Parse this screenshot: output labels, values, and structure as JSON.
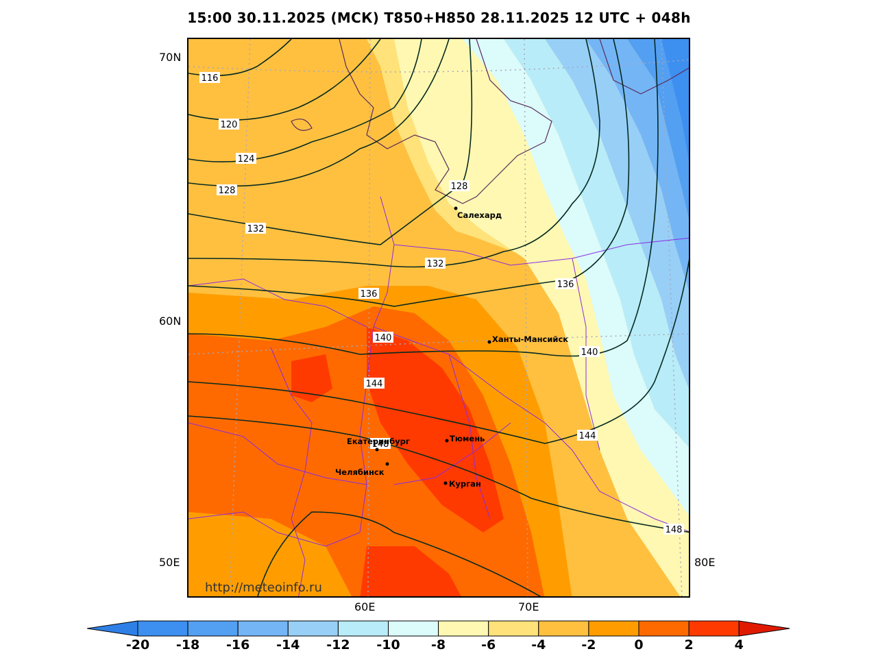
{
  "title": "15:00 30.11.2025 (МСК) T850+H850 28.11.2025 12 UTC + 048h",
  "watermark": "http://meteoinfo.ru",
  "axes": {
    "lat_labels": [
      "70N",
      "60N"
    ],
    "lon_labels_bottom": [
      "60E",
      "70E"
    ],
    "corner_labels": [
      "50E",
      "80E"
    ]
  },
  "contours": [
    {
      "value": "116"
    },
    {
      "value": "120"
    },
    {
      "value": "124"
    },
    {
      "value": "128"
    },
    {
      "value": "128"
    },
    {
      "value": "132"
    },
    {
      "value": "132"
    },
    {
      "value": "136"
    },
    {
      "value": "136"
    },
    {
      "value": "140"
    },
    {
      "value": "140"
    },
    {
      "value": "144"
    },
    {
      "value": "144"
    },
    {
      "value": "148"
    },
    {
      "value": "148"
    }
  ],
  "cities": [
    {
      "name": "Салехард"
    },
    {
      "name": "Ханты-Мансийск"
    },
    {
      "name": "Екатеринбург"
    },
    {
      "name": "Тюмень"
    },
    {
      "name": "Челябинск"
    },
    {
      "name": "Курган"
    }
  ],
  "colorbar": {
    "ticks": [
      "-20",
      "-18",
      "-16",
      "-14",
      "-12",
      "-10",
      "-8",
      "-6",
      "-4",
      "-2",
      "0",
      "2",
      "4"
    ],
    "colors": [
      "#2f80e6",
      "#3d8ff0",
      "#539ff2",
      "#74b5f5",
      "#97cff7",
      "#b8ecf8",
      "#dcfbfb",
      "#fff8b2",
      "#ffe27a",
      "#ffc040",
      "#ff9d00",
      "#ff6a00",
      "#ff3a00",
      "#e01a00"
    ],
    "lower_extend_color": "#2f80e6",
    "upper_extend_color": "#e01a00"
  }
}
